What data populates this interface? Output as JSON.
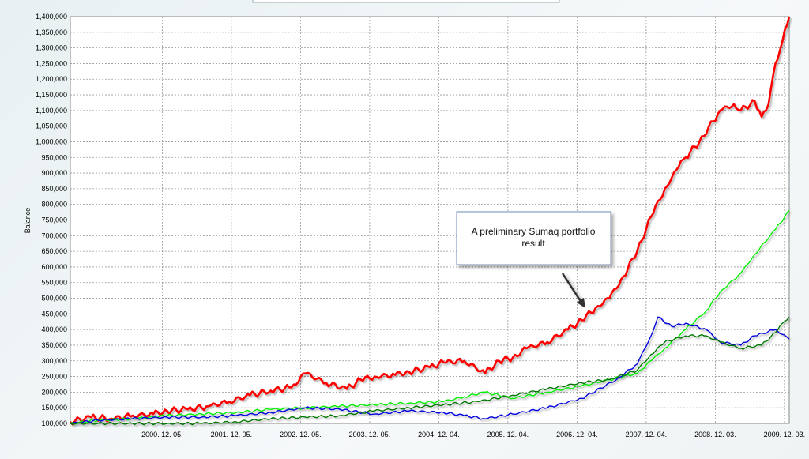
{
  "chart_data": {
    "type": "line",
    "title": "",
    "xlabel": "",
    "ylabel": "Balance",
    "ylim": [
      100000,
      1400000
    ],
    "y_tick_step": 50000,
    "x_ticks": [
      "2000. 12. 05.",
      "2001. 12. 05.",
      "2002. 12. 05.",
      "2003. 12. 05.",
      "2004. 12. 04.",
      "2005. 12. 04.",
      "2006. 12. 04.",
      "2007. 12. 04.",
      "2008. 12. 03.",
      "2009. 12. 03."
    ],
    "x_range": [
      1999.6,
      2010.0
    ],
    "grid": true,
    "series": [
      {
        "color": "#ff0000",
        "x": [
          1999.6,
          1999.9,
          2000.2,
          2000.5,
          2000.8,
          2001.0,
          2001.3,
          2001.6,
          2001.9,
          2002.2,
          2002.5,
          2002.8,
          2003.0,
          2003.3,
          2003.6,
          2003.8,
          2004.0,
          2004.3,
          2004.5,
          2004.8,
          2005.0,
          2005.3,
          2005.6,
          2005.8,
          2006.0,
          2006.2,
          2006.5,
          2006.8,
          2007.0,
          2007.2,
          2007.4,
          2007.6,
          2007.8,
          2008.0,
          2008.2,
          2008.4,
          2008.5,
          2008.7,
          2009.0,
          2009.2,
          2009.3,
          2009.5,
          2009.6,
          2009.7,
          2009.8,
          2009.9,
          2010.0
        ],
        "y": [
          105000,
          120000,
          115000,
          125000,
          130000,
          140000,
          145000,
          155000,
          170000,
          190000,
          205000,
          215000,
          260000,
          230000,
          210000,
          240000,
          250000,
          255000,
          265000,
          280000,
          295000,
          300000,
          260000,
          300000,
          310000,
          340000,
          360000,
          400000,
          430000,
          470000,
          500000,
          570000,
          650000,
          760000,
          850000,
          920000,
          950000,
          1000000,
          1100000,
          1120000,
          1100000,
          1130000,
          1080000,
          1120000,
          1250000,
          1320000,
          1400000
        ]
      },
      {
        "color": "#00ee00",
        "x": [
          1999.6,
          2000.0,
          2000.5,
          2001.0,
          2001.5,
          2002.0,
          2002.5,
          2003.0,
          2003.5,
          2004.0,
          2004.5,
          2005.0,
          2005.3,
          2005.6,
          2006.0,
          2006.5,
          2007.0,
          2007.4,
          2007.8,
          2008.0,
          2008.2,
          2008.5,
          2008.8,
          2009.0,
          2009.3,
          2009.5,
          2009.8,
          2010.0
        ],
        "y": [
          100000,
          110000,
          115000,
          125000,
          130000,
          135000,
          145000,
          150000,
          155000,
          160000,
          165000,
          170000,
          185000,
          200000,
          180000,
          200000,
          220000,
          240000,
          260000,
          300000,
          340000,
          400000,
          460000,
          520000,
          580000,
          640000,
          720000,
          780000
        ]
      },
      {
        "color": "#0000dd",
        "x": [
          1999.6,
          2000.0,
          2000.5,
          2001.0,
          2001.5,
          2002.0,
          2002.5,
          2003.0,
          2003.5,
          2004.0,
          2004.5,
          2005.0,
          2005.3,
          2005.6,
          2006.0,
          2006.5,
          2007.0,
          2007.5,
          2007.8,
          2008.0,
          2008.1,
          2008.3,
          2008.5,
          2008.8,
          2009.0,
          2009.3,
          2009.5,
          2009.8,
          2010.0
        ],
        "y": [
          100000,
          110000,
          115000,
          120000,
          120000,
          125000,
          135000,
          150000,
          145000,
          130000,
          140000,
          135000,
          125000,
          115000,
          130000,
          150000,
          180000,
          240000,
          290000,
          380000,
          440000,
          410000,
          420000,
          400000,
          360000,
          350000,
          380000,
          400000,
          370000
        ]
      },
      {
        "color": "#007700",
        "x": [
          1999.6,
          2000.0,
          2000.5,
          2001.0,
          2001.5,
          2002.0,
          2002.5,
          2003.0,
          2003.5,
          2004.0,
          2004.5,
          2005.0,
          2005.5,
          2006.0,
          2006.5,
          2007.0,
          2007.4,
          2007.8,
          2008.0,
          2008.2,
          2008.5,
          2008.8,
          2009.0,
          2009.3,
          2009.6,
          2009.8,
          2009.9,
          2010.0
        ],
        "y": [
          100000,
          100000,
          100000,
          100000,
          100000,
          105000,
          115000,
          120000,
          125000,
          140000,
          150000,
          160000,
          170000,
          190000,
          210000,
          230000,
          240000,
          270000,
          320000,
          360000,
          380000,
          380000,
          360000,
          340000,
          350000,
          390000,
          420000,
          440000
        ]
      }
    ],
    "annotation": {
      "text_lines": [
        "A preliminary Sumaq portfolio",
        "result"
      ]
    }
  }
}
